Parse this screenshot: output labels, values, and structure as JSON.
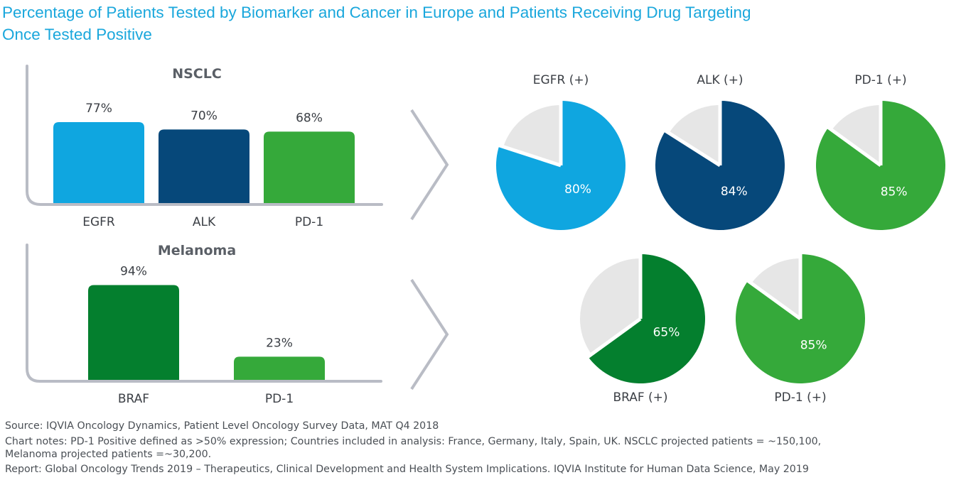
{
  "title": {
    "line1": "Percentage of Patients Tested by Biomarker and Cancer in Europe and Patients Receiving Drug Targeting",
    "line2": "Once Tested Positive"
  },
  "colors": {
    "egfr": "#0fa6e0",
    "alk": "#06487a",
    "pd1": "#35a93a",
    "braf": "#047f2e",
    "pie_rest": "#e6e6e6",
    "axis": "#b9bcc5",
    "title": "#1aa7dc"
  },
  "chart_data": [
    {
      "type": "bar",
      "title": "NSCLC",
      "categories": [
        "EGFR",
        "ALK",
        "PD-1"
      ],
      "values": [
        77,
        70,
        68
      ],
      "labels": [
        "77%",
        "70%",
        "68%"
      ],
      "color_keys": [
        "egfr",
        "alk",
        "pd1"
      ],
      "ylim": [
        0,
        100
      ]
    },
    {
      "type": "bar",
      "title": "Melanoma",
      "categories": [
        "BRAF",
        "PD-1"
      ],
      "values": [
        94,
        23
      ],
      "labels": [
        "94%",
        "23%"
      ],
      "color_keys": [
        "braf",
        "pd1"
      ],
      "ylim": [
        0,
        100
      ]
    },
    {
      "type": "pie",
      "title": "Patients receiving drug targeting once tested positive — NSCLC",
      "pies": [
        {
          "label": "EGFR (+)",
          "value": 80,
          "value_label": "80%",
          "color_key": "egfr"
        },
        {
          "label": "ALK (+)",
          "value": 84,
          "value_label": "84%",
          "color_key": "alk"
        },
        {
          "label": "PD-1 (+)",
          "value": 85,
          "value_label": "85%",
          "color_key": "pd1"
        }
      ]
    },
    {
      "type": "pie",
      "title": "Patients receiving drug targeting once tested positive — Melanoma",
      "pies": [
        {
          "label": "BRAF (+)",
          "value": 65,
          "value_label": "65%",
          "color_key": "braf"
        },
        {
          "label": "PD-1 (+)",
          "value": 85,
          "value_label": "85%",
          "color_key": "pd1"
        }
      ]
    }
  ],
  "notes": {
    "source": "Source: IQVIA Oncology Dynamics, Patient Level Oncology Survey Data, MAT Q4 2018",
    "chart_notes_1": "Chart notes: PD-1 Positive defined as >50% expression; Countries included in analysis: France, Germany, Italy, Spain, UK. NSCLC projected patients = ~150,100,",
    "chart_notes_2": "Melanoma projected patients =~30,200.",
    "report": "Report: Global Oncology Trends 2019 – Therapeutics, Clinical Development and Health System Implications. IQVIA Institute for Human Data Science, May 2019"
  }
}
